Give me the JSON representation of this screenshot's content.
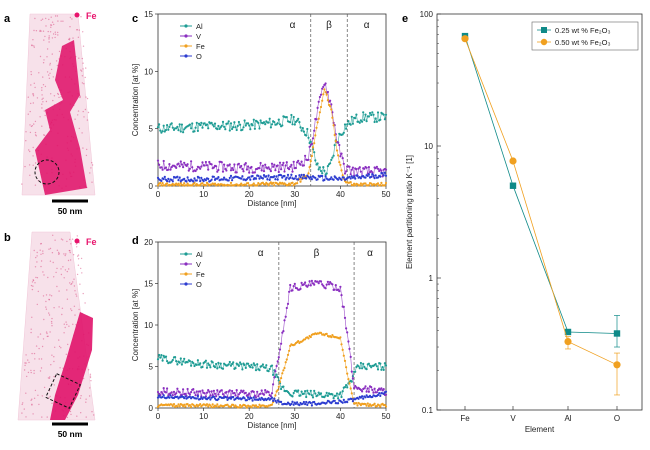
{
  "panel_labels": [
    "a",
    "b",
    "c",
    "d",
    "e"
  ],
  "apt": {
    "element_label": "Fe",
    "element_color": "#e8136c",
    "scalebar_label": "50 nm"
  },
  "colors": {
    "Al": "#1e9c94",
    "V": "#8a2fc0",
    "Fe": "#f0a020",
    "O": "#2c3cd0",
    "e_025": "#0f8a88",
    "e_050": "#f0a020"
  },
  "chart_data": [
    {
      "type": "line",
      "panel": "c",
      "xlabel": "Distance [nm]",
      "ylabel": "Concentration [at %]",
      "xlim": [
        0,
        50
      ],
      "ylim": [
        0,
        15
      ],
      "xticks": [
        0,
        10,
        20,
        30,
        40,
        50
      ],
      "yticks": [
        0,
        5,
        10,
        15
      ],
      "phase_boundaries": [
        33.5,
        41.5
      ],
      "phase_labels": [
        "α",
        "β",
        "α"
      ],
      "legend": [
        "Al",
        "V",
        "Fe",
        "O"
      ],
      "series": [
        {
          "name": "Al",
          "x": [
            0,
            10,
            20,
            25,
            30,
            33,
            35,
            37,
            38,
            39,
            41,
            43,
            45,
            50
          ],
          "y": [
            5.0,
            5.2,
            5.3,
            5.5,
            5.8,
            4.5,
            1.6,
            1.2,
            2.0,
            3.8,
            5.2,
            5.8,
            6.0,
            6.0
          ]
        },
        {
          "name": "V",
          "x": [
            0,
            10,
            20,
            30,
            33,
            35,
            36.5,
            38,
            39.5,
            41,
            43,
            50
          ],
          "y": [
            1.8,
            1.7,
            1.6,
            1.7,
            2.5,
            6.5,
            9.2,
            7.0,
            3.5,
            1.5,
            1.3,
            1.2
          ]
        },
        {
          "name": "Fe",
          "x": [
            0,
            10,
            20,
            30,
            33,
            35,
            36.5,
            38,
            39.5,
            41,
            43,
            50
          ],
          "y": [
            0.1,
            0.1,
            0.1,
            0.2,
            1.0,
            5.5,
            8.5,
            6.5,
            2.5,
            0.4,
            0.1,
            0.1
          ]
        },
        {
          "name": "O",
          "x": [
            0,
            10,
            20,
            30,
            35,
            40,
            45,
            50
          ],
          "y": [
            0.6,
            0.6,
            0.7,
            0.8,
            0.7,
            0.6,
            0.8,
            1.0
          ]
        }
      ]
    },
    {
      "type": "line",
      "panel": "d",
      "xlabel": "Distance [nm]",
      "ylabel": "Concentration [at %]",
      "xlim": [
        0,
        50
      ],
      "ylim": [
        0,
        20
      ],
      "xticks": [
        0,
        10,
        20,
        30,
        40,
        50
      ],
      "yticks": [
        0,
        5,
        10,
        15,
        20
      ],
      "phase_boundaries": [
        26.5,
        43
      ],
      "phase_labels": [
        "α",
        "β",
        "α"
      ],
      "legend": [
        "Al",
        "V",
        "Fe",
        "O"
      ],
      "series": [
        {
          "name": "Al",
          "x": [
            0,
            10,
            20,
            25,
            27,
            29,
            35,
            40,
            42,
            44,
            50
          ],
          "y": [
            6.0,
            5.3,
            5.0,
            4.7,
            2.5,
            1.8,
            1.6,
            1.6,
            3.0,
            5.0,
            5.0
          ]
        },
        {
          "name": "V",
          "x": [
            0,
            10,
            20,
            25,
            27,
            29,
            35,
            40,
            41.5,
            43,
            50
          ],
          "y": [
            2.0,
            1.8,
            1.7,
            1.8,
            8.0,
            14.5,
            15.0,
            14.5,
            9.0,
            2.5,
            2.0
          ]
        },
        {
          "name": "Fe",
          "x": [
            0,
            10,
            20,
            25,
            27,
            29,
            35,
            40,
            41.5,
            43,
            50
          ],
          "y": [
            0.3,
            0.3,
            0.2,
            0.3,
            3.5,
            7.5,
            9.0,
            8.5,
            4.0,
            0.5,
            0.3
          ]
        },
        {
          "name": "O",
          "x": [
            0,
            10,
            20,
            25,
            27,
            35,
            43,
            50
          ],
          "y": [
            1.4,
            1.2,
            1.1,
            1.1,
            0.6,
            0.5,
            1.0,
            1.8
          ]
        }
      ]
    },
    {
      "type": "line",
      "panel": "e",
      "xlabel": "Element",
      "ylabel": "Element partitioning ratio K⁻¹ [1]",
      "categories": [
        "Fe",
        "V",
        "Al",
        "O"
      ],
      "ylim": [
        0.1,
        100
      ],
      "yscale": "log",
      "yticks": [
        0.1,
        1,
        10,
        100
      ],
      "legend_position": "top-right",
      "series": [
        {
          "name": "0.25 wt % Fe₂O₃",
          "values": [
            68,
            5.0,
            0.39,
            0.38
          ],
          "err_low": [
            null,
            null,
            null,
            0.3
          ],
          "err_high": [
            null,
            null,
            null,
            0.52
          ]
        },
        {
          "name": "0.50 wt % Fe₂O₃",
          "values": [
            65,
            7.7,
            0.33,
            0.22
          ],
          "err_low": [
            null,
            null,
            0.29,
            0.13
          ],
          "err_high": [
            null,
            null,
            0.36,
            0.27
          ]
        }
      ]
    }
  ]
}
